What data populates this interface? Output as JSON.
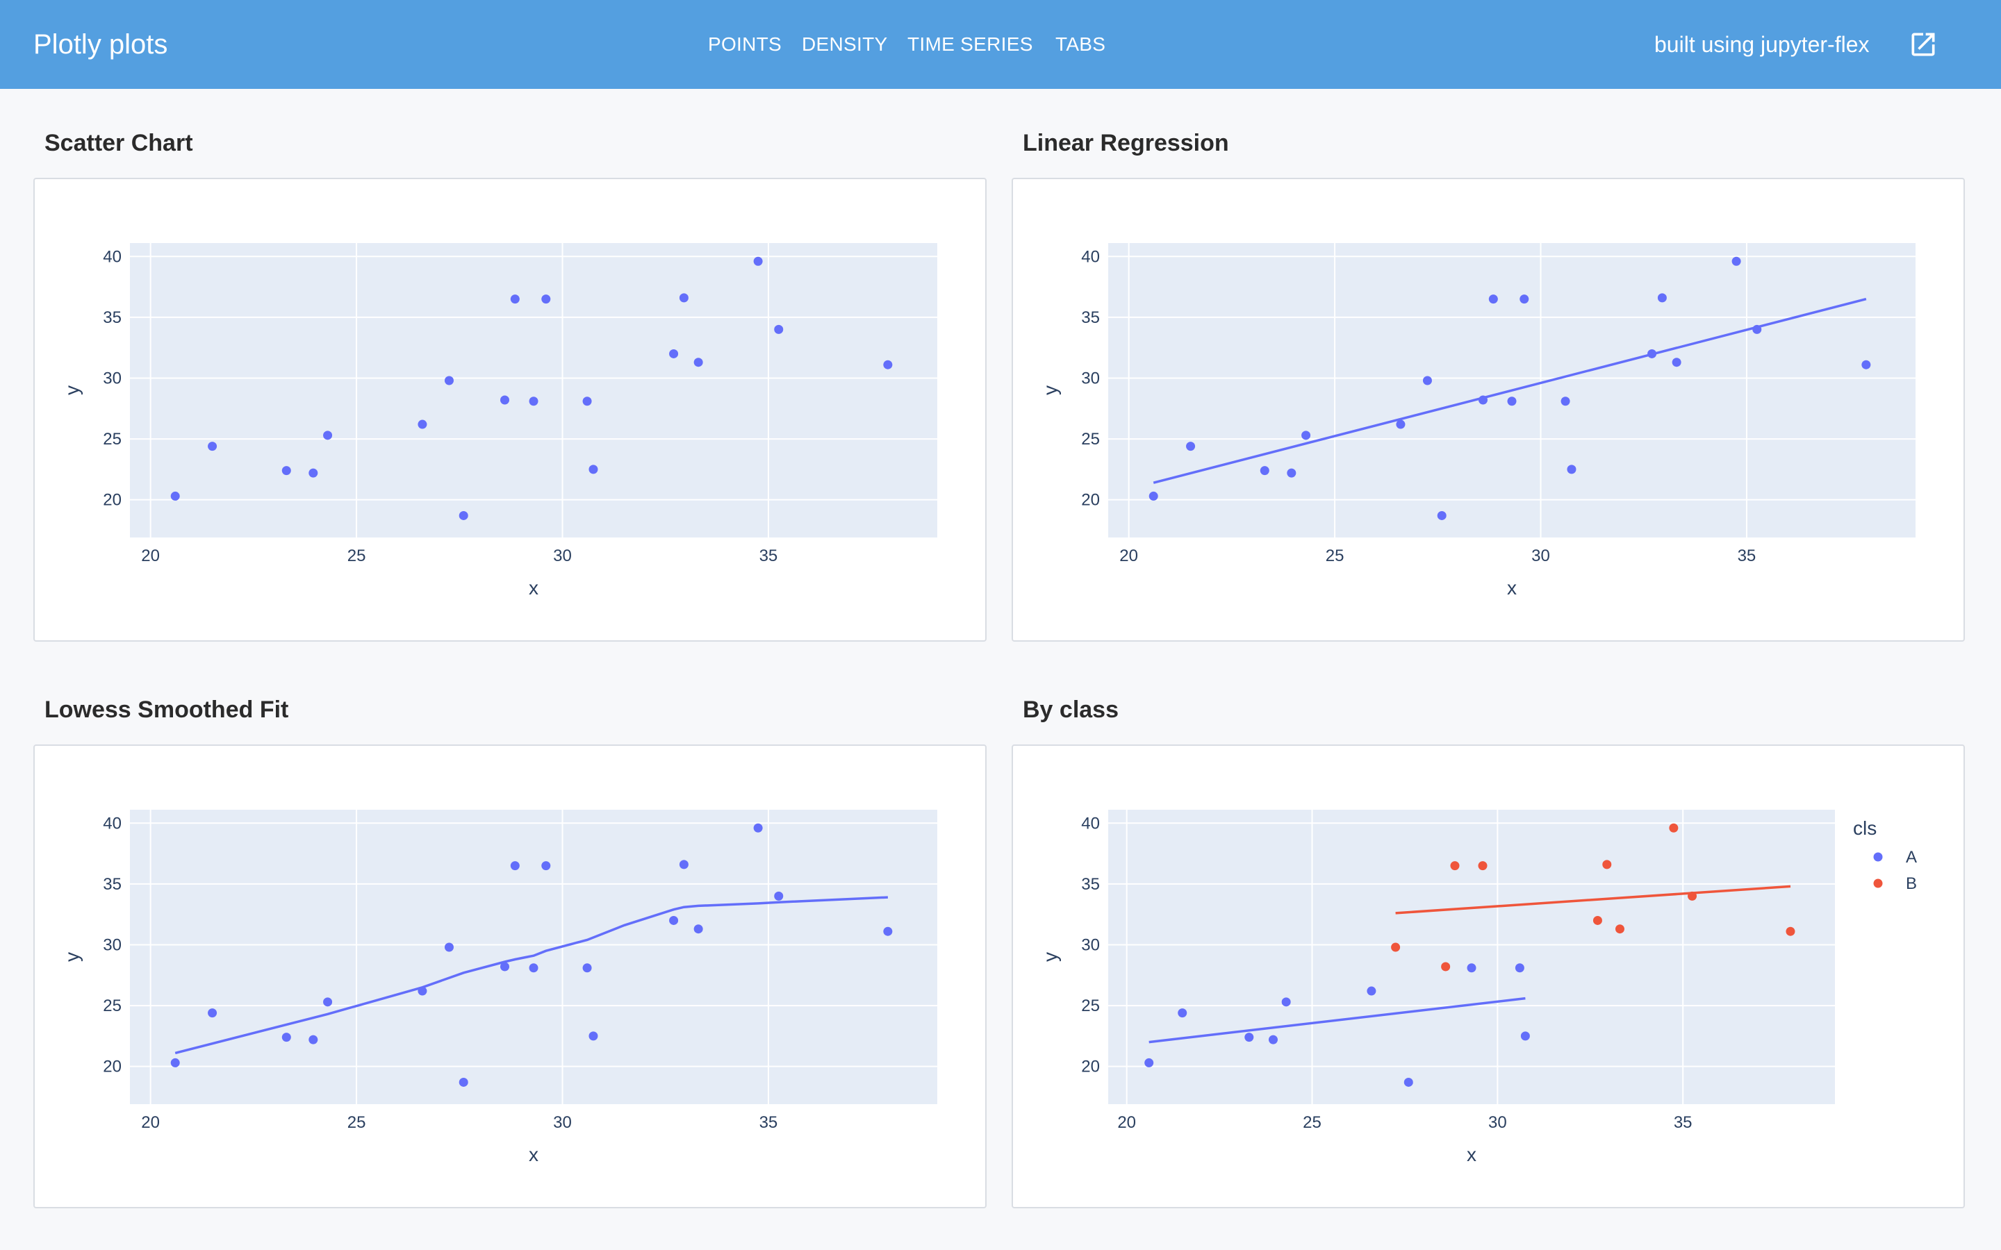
{
  "header": {
    "title": "Plotly plots",
    "nav": [
      {
        "label": "POINTS"
      },
      {
        "label": "DENSITY"
      },
      {
        "label": "TIME SERIES"
      },
      {
        "label": "TABS"
      }
    ],
    "built_text": "built using jupyter-flex",
    "external_link_icon": "external-link-icon",
    "background_color": "#549fe0"
  },
  "cards": [
    {
      "title": "Scatter Chart"
    },
    {
      "title": "Linear Regression"
    },
    {
      "title": "Lowess Smoothed Fit"
    },
    {
      "title": "By class"
    }
  ],
  "chart_data": [
    {
      "type": "scatter",
      "title": "Scatter Chart",
      "xlabel": "x",
      "ylabel": "y",
      "xlim": [
        19.5,
        39.1
      ],
      "ylim": [
        16.9,
        41.1
      ],
      "xticks": [
        20,
        25,
        30,
        35
      ],
      "yticks": [
        20,
        25,
        30,
        35,
        40
      ],
      "grid": true,
      "color": "#636efa",
      "series": [
        {
          "x": [
            20.6,
            21.5,
            23.3,
            23.95,
            24.3,
            26.6,
            27.25,
            27.6,
            28.6,
            28.85,
            29.3,
            29.6,
            30.6,
            30.75,
            32.7,
            32.95,
            33.3,
            34.75,
            35.25,
            37.9
          ],
          "y": [
            20.3,
            24.4,
            22.4,
            22.2,
            25.3,
            26.2,
            29.8,
            18.7,
            28.2,
            36.5,
            28.1,
            36.5,
            28.1,
            22.5,
            32.0,
            36.6,
            31.3,
            39.6,
            34.0,
            31.1
          ]
        }
      ]
    },
    {
      "type": "scatter",
      "title": "Linear Regression",
      "xlabel": "x",
      "ylabel": "y",
      "xlim": [
        19.5,
        39.1
      ],
      "ylim": [
        16.9,
        41.1
      ],
      "xticks": [
        20,
        25,
        30,
        35
      ],
      "yticks": [
        20,
        25,
        30,
        35,
        40
      ],
      "grid": true,
      "color": "#636efa",
      "series": [
        {
          "x": [
            20.6,
            21.5,
            23.3,
            23.95,
            24.3,
            26.6,
            27.25,
            27.6,
            28.6,
            28.85,
            29.3,
            29.6,
            30.6,
            30.75,
            32.7,
            32.95,
            33.3,
            34.75,
            35.25,
            37.9
          ],
          "y": [
            20.3,
            24.4,
            22.4,
            22.2,
            25.3,
            26.2,
            29.8,
            18.7,
            28.2,
            36.5,
            28.1,
            36.5,
            28.1,
            22.5,
            32.0,
            36.6,
            31.3,
            39.6,
            34.0,
            31.1
          ]
        }
      ],
      "trendlines": [
        {
          "x": [
            20.6,
            37.9
          ],
          "y": [
            21.4,
            36.5
          ],
          "color": "#636efa"
        }
      ]
    },
    {
      "type": "scatter",
      "title": "Lowess Smoothed Fit",
      "xlabel": "x",
      "ylabel": "y",
      "xlim": [
        19.5,
        39.1
      ],
      "ylim": [
        16.9,
        41.1
      ],
      "xticks": [
        20,
        25,
        30,
        35
      ],
      "yticks": [
        20,
        25,
        30,
        35,
        40
      ],
      "grid": true,
      "color": "#636efa",
      "series": [
        {
          "x": [
            20.6,
            21.5,
            23.3,
            23.95,
            24.3,
            26.6,
            27.25,
            27.6,
            28.6,
            28.85,
            29.3,
            29.6,
            30.6,
            30.75,
            32.7,
            32.95,
            33.3,
            34.75,
            35.25,
            37.9
          ],
          "y": [
            20.3,
            24.4,
            22.4,
            22.2,
            25.3,
            26.2,
            29.8,
            18.7,
            28.2,
            36.5,
            28.1,
            36.5,
            28.1,
            22.5,
            32.0,
            36.6,
            31.3,
            39.6,
            34.0,
            31.1
          ]
        }
      ],
      "trendlines": [
        {
          "x": [
            20.6,
            24.3,
            26.6,
            27.6,
            28.6,
            28.85,
            29.3,
            29.6,
            30.6,
            31.5,
            32.7,
            32.95,
            33.3,
            34.75,
            35.25,
            37.9
          ],
          "y": [
            21.1,
            24.3,
            26.5,
            27.7,
            28.6,
            28.8,
            29.1,
            29.5,
            30.4,
            31.6,
            32.9,
            33.1,
            33.2,
            33.4,
            33.5,
            33.9
          ],
          "color": "#636efa"
        }
      ]
    },
    {
      "type": "scatter",
      "title": "By class",
      "xlabel": "x",
      "ylabel": "y",
      "xlim": [
        19.5,
        39.1
      ],
      "ylim": [
        16.9,
        41.1
      ],
      "xticks": [
        20,
        25,
        30,
        35
      ],
      "yticks": [
        20,
        25,
        30,
        35,
        40
      ],
      "grid": true,
      "legend_title": "cls",
      "legend_position": "top-right",
      "series": [
        {
          "name": "A",
          "color": "#636efa",
          "x": [
            20.6,
            21.5,
            23.3,
            23.95,
            24.3,
            26.6,
            27.6,
            29.3,
            30.6,
            30.75
          ],
          "y": [
            20.3,
            24.4,
            22.4,
            22.2,
            25.3,
            26.2,
            18.7,
            28.1,
            28.1,
            22.5
          ]
        },
        {
          "name": "B",
          "color": "#ef553b",
          "x": [
            27.25,
            28.6,
            28.85,
            29.6,
            32.7,
            32.95,
            33.3,
            34.75,
            35.25,
            37.9
          ],
          "y": [
            29.8,
            28.2,
            36.5,
            36.5,
            32.0,
            36.6,
            31.3,
            39.6,
            34.0,
            31.1
          ]
        }
      ],
      "trendlines": [
        {
          "x": [
            20.6,
            30.75
          ],
          "y": [
            22.0,
            25.6
          ],
          "color": "#636efa"
        },
        {
          "x": [
            27.25,
            37.9
          ],
          "y": [
            32.6,
            34.8
          ],
          "color": "#ef553b"
        }
      ]
    }
  ]
}
